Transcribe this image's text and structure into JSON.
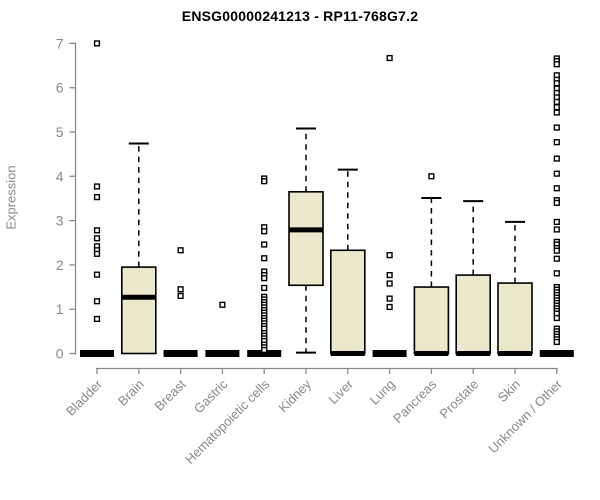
{
  "colors": {
    "background": "#ffffff",
    "box_fill": "#ece8cc",
    "box_stroke": "#000000",
    "median": "#000000",
    "outlier": "#000000",
    "axis": "#8a8a8a",
    "title": "#000000"
  },
  "chart_data": {
    "type": "boxplot",
    "title": "ENSG00000241213 - RP11-768G7.2",
    "xlabel": "",
    "ylabel": "Expression",
    "ylim": [
      0,
      7
    ],
    "yticks": [
      0,
      1,
      2,
      3,
      4,
      5,
      6,
      7
    ],
    "grid": false,
    "legend": null,
    "categories": [
      "Bladder",
      "Brain",
      "Breast",
      "Gastric",
      "Hematopoietic cells",
      "Kidney",
      "Liver",
      "Lung",
      "Pancreas",
      "Prostate",
      "Skin",
      "Unknown / Other"
    ],
    "boxes": [
      {
        "category": "Bladder",
        "q1": 0,
        "median": 0,
        "q3": 0,
        "whisker_low": 0,
        "whisker_high": 0,
        "outliers": [
          7.0,
          3.77,
          3.53,
          2.78,
          2.6,
          2.42,
          2.33,
          2.25,
          1.78,
          1.18,
          0.78
        ]
      },
      {
        "category": "Brain",
        "q1": 0,
        "median": 1.27,
        "q3": 1.95,
        "whisker_low": 0,
        "whisker_high": 4.74,
        "outliers": []
      },
      {
        "category": "Breast",
        "q1": 0,
        "median": 0,
        "q3": 0,
        "whisker_low": 0,
        "whisker_high": 0,
        "outliers": [
          2.33,
          1.45,
          1.3
        ]
      },
      {
        "category": "Gastric",
        "q1": 0,
        "median": 0,
        "q3": 0,
        "whisker_low": 0,
        "whisker_high": 0,
        "outliers": [
          1.1
        ]
      },
      {
        "category": "Hematopoietic cells",
        "q1": 0,
        "median": 0,
        "q3": 0,
        "whisker_low": 0,
        "whisker_high": 0,
        "outliers": [
          3.95,
          3.89,
          2.85,
          2.76,
          2.46,
          2.15,
          1.85,
          1.77,
          1.7,
          1.48,
          1.28,
          1.22,
          1.16,
          1.1,
          1.04,
          0.98,
          0.92,
          0.86,
          0.8,
          0.74,
          0.68,
          0.62,
          0.56,
          0.46,
          0.4,
          0.34,
          0.28,
          0.2,
          0.14,
          0.08
        ]
      },
      {
        "category": "Kidney",
        "q1": 1.54,
        "median": 2.79,
        "q3": 3.65,
        "whisker_low": 0.02,
        "whisker_high": 5.08,
        "outliers": []
      },
      {
        "category": "Liver",
        "q1": 0,
        "median": 0,
        "q3": 2.33,
        "whisker_low": 0,
        "whisker_high": 4.15,
        "outliers": []
      },
      {
        "category": "Lung",
        "q1": 0,
        "median": 0,
        "q3": 0,
        "whisker_low": 0,
        "whisker_high": 0,
        "outliers": [
          6.67,
          2.22,
          1.77,
          1.58,
          1.24,
          1.05
        ]
      },
      {
        "category": "Pancreas",
        "q1": 0,
        "median": 0,
        "q3": 1.5,
        "whisker_low": 0,
        "whisker_high": 3.51,
        "outliers": [
          4.0
        ]
      },
      {
        "category": "Prostate",
        "q1": 0,
        "median": 0,
        "q3": 1.77,
        "whisker_low": 0,
        "whisker_high": 3.44,
        "outliers": []
      },
      {
        "category": "Skin",
        "q1": 0,
        "median": 0,
        "q3": 1.59,
        "whisker_low": 0,
        "whisker_high": 2.97,
        "outliers": []
      },
      {
        "category": "Unknown / Other",
        "q1": 0,
        "median": 0,
        "q3": 0,
        "whisker_low": 0,
        "whisker_high": 0,
        "outliers": [
          6.66,
          6.6,
          6.53,
          6.28,
          6.18,
          6.1,
          5.98,
          5.88,
          5.78,
          5.68,
          5.56,
          5.44,
          5.1,
          4.77,
          4.4,
          4.06,
          3.73,
          3.46,
          3.4,
          2.97,
          2.8,
          2.52,
          2.46,
          2.38,
          2.32,
          2.14,
          1.81,
          1.5,
          1.44,
          1.38,
          1.32,
          1.26,
          1.2,
          1.14,
          1.08,
          1.02,
          0.96,
          0.9,
          0.8,
          0.56,
          0.5,
          0.44,
          0.38,
          0.32,
          0.26
        ]
      }
    ]
  }
}
